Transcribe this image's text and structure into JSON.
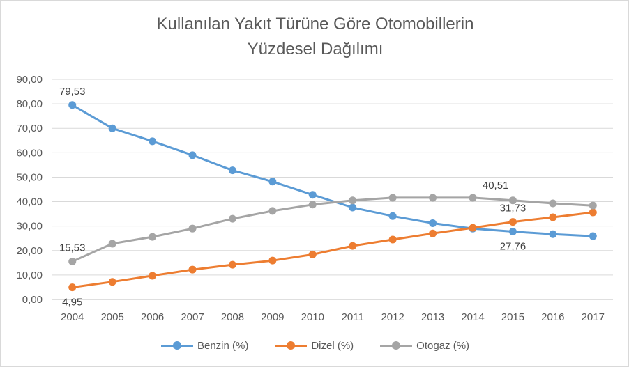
{
  "chart_data": {
    "type": "line",
    "title_line1": "Kullanılan Yakıt Türüne Göre Otomobillerin",
    "title_line2": "Yüzdesel Dağılımı",
    "categories": [
      "2004",
      "2005",
      "2006",
      "2007",
      "2008",
      "2009",
      "2010",
      "2011",
      "2012",
      "2013",
      "2014",
      "2015",
      "2016",
      "2017"
    ],
    "ylim": [
      0,
      90
    ],
    "yticks": [
      "0,00",
      "10,00",
      "20,00",
      "30,00",
      "40,00",
      "50,00",
      "60,00",
      "70,00",
      "80,00",
      "90,00"
    ],
    "grid": true,
    "legend_position": "bottom",
    "series": [
      {
        "name": "Benzin (%)",
        "color": "#5b9bd5",
        "values": [
          79.53,
          70.0,
          64.7,
          59.0,
          52.8,
          48.2,
          42.8,
          37.6,
          34.1,
          31.2,
          29.0,
          27.76,
          26.7,
          25.9
        ]
      },
      {
        "name": "Dizel (%)",
        "color": "#ed7d31",
        "values": [
          4.95,
          7.2,
          9.7,
          12.2,
          14.2,
          15.9,
          18.4,
          21.9,
          24.5,
          27.0,
          29.3,
          31.73,
          33.6,
          35.6
        ]
      },
      {
        "name": "Otogaz (%)",
        "color": "#a5a5a5",
        "values": [
          15.53,
          22.8,
          25.6,
          29.0,
          33.0,
          36.2,
          38.8,
          40.5,
          41.6,
          41.6,
          41.6,
          40.51,
          39.3,
          38.4
        ]
      }
    ],
    "data_labels": [
      {
        "series": 0,
        "index": 0,
        "text": "79,53",
        "pos": "above"
      },
      {
        "series": 0,
        "index": 11,
        "text": "27,76",
        "pos": "below"
      },
      {
        "series": 1,
        "index": 0,
        "text": "4,95",
        "pos": "below"
      },
      {
        "series": 1,
        "index": 11,
        "text": "31,73",
        "pos": "above"
      },
      {
        "series": 2,
        "index": 0,
        "text": "15,53",
        "pos": "above"
      },
      {
        "series": 2,
        "index": 11,
        "text": "40,51",
        "pos": "above-left"
      }
    ]
  }
}
